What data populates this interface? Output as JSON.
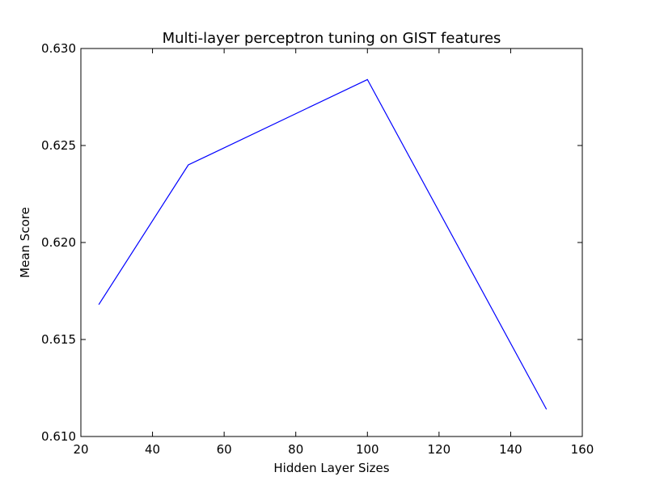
{
  "chart_data": {
    "type": "line",
    "title": "Multi-layer perceptron tuning on GIST features",
    "xlabel": "Hidden Layer Sizes",
    "ylabel": "Mean Score",
    "xlim": [
      20,
      160
    ],
    "ylim": [
      0.61,
      0.63
    ],
    "xticks": [
      "20",
      "40",
      "60",
      "80",
      "100",
      "120",
      "140",
      "160"
    ],
    "yticks": [
      "0.610",
      "0.615",
      "0.620",
      "0.625",
      "0.630"
    ],
    "grid": false,
    "series": [
      {
        "color": "#0000ff",
        "x": [
          25,
          50,
          100,
          150
        ],
        "y": [
          0.6168,
          0.624,
          0.6284,
          0.6114
        ]
      }
    ]
  }
}
